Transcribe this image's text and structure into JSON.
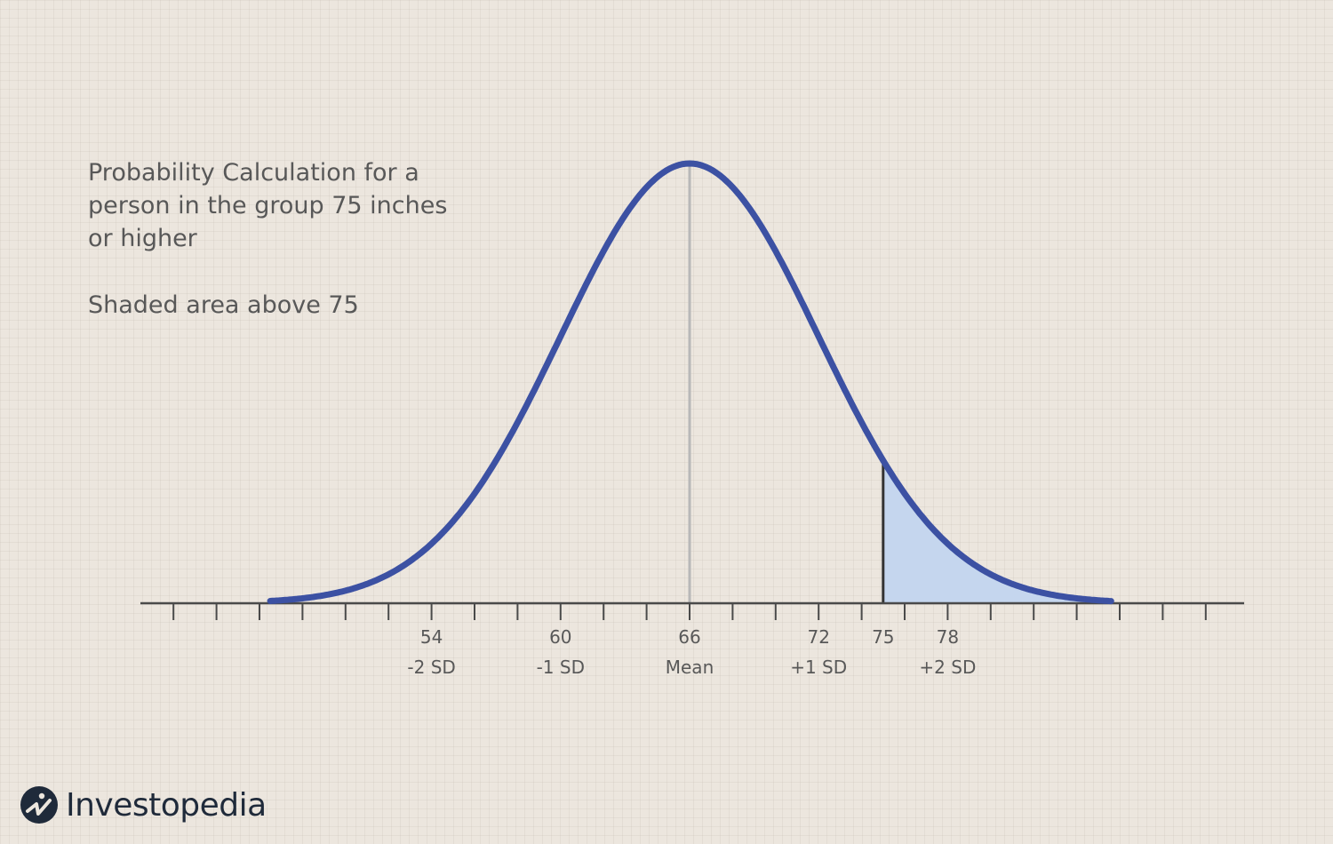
{
  "chart_data": {
    "type": "area",
    "title": "Probability Calculation for a person in the group 75 inches or higher",
    "subtitle": "Shaded area above 75",
    "distribution": "normal",
    "mean": 66,
    "sd": 6,
    "xlim": [
      41,
      87
    ],
    "shaded_from": 75,
    "ticks": [
      {
        "value": 54,
        "label": "54",
        "sublabel": "-2 SD"
      },
      {
        "value": 60,
        "label": "60",
        "sublabel": "-1 SD"
      },
      {
        "value": 66,
        "label": "66",
        "sublabel": "Mean"
      },
      {
        "value": 72,
        "label": "72",
        "sublabel": "+1 SD"
      },
      {
        "value": 75,
        "label": "75",
        "sublabel": ""
      },
      {
        "value": 78,
        "label": "78",
        "sublabel": "+2 SD"
      }
    ],
    "curve_color": "#3c51a3",
    "shade_color": "#c5d6ee",
    "grid": false,
    "legend": "none"
  },
  "brand": {
    "name": "Investopedia",
    "logo_icon": "investopedia-logo-icon"
  }
}
